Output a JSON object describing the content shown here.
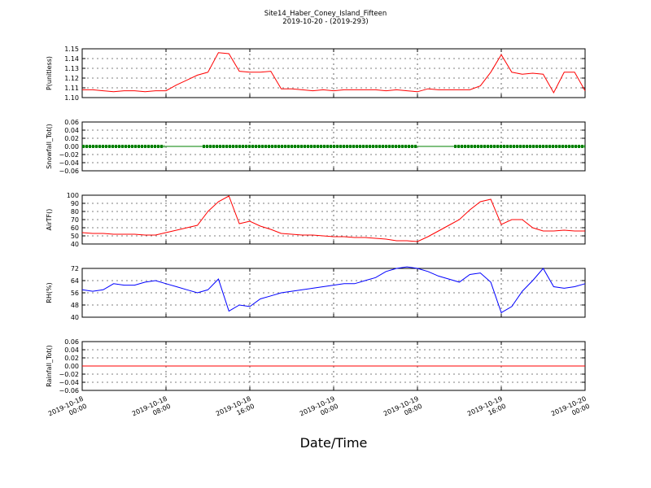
{
  "figure": {
    "title_line1": "Site14_Haber_Coney_Island_Fifteen",
    "title_line2": "2019-10-20 - (2019-293)",
    "xlabel": "Date/Time"
  },
  "chart_data": {
    "type": "line",
    "x_range": [
      "2019-10-18 00:00",
      "2019-10-20 00:00"
    ],
    "x_ticks": [
      {
        "line1": "2019-10-18",
        "line2": "00:00"
      },
      {
        "line1": "2019-10-18",
        "line2": "08:00"
      },
      {
        "line1": "2019-10-18",
        "line2": "16:00"
      },
      {
        "line1": "2019-10-19",
        "line2": "00:00"
      },
      {
        "line1": "2019-10-19",
        "line2": "08:00"
      },
      {
        "line1": "2019-10-19",
        "line2": "16:00"
      },
      {
        "line1": "2019-10-20",
        "line2": "00:00"
      }
    ],
    "grid": true,
    "panels": [
      {
        "ylabel": "P(unitless)",
        "ylim": [
          1.1,
          1.15
        ],
        "yticks": [
          "1.10",
          "1.11",
          "1.12",
          "1.13",
          "1.14",
          "1.15"
        ],
        "color": "#ff0000",
        "style": "line",
        "x_hours": [
          0,
          1,
          2,
          3,
          4,
          5,
          6,
          7,
          8,
          9,
          10,
          11,
          12,
          13,
          14,
          15,
          16,
          17,
          18,
          19,
          20,
          21,
          22,
          23,
          24,
          25,
          26,
          27,
          28,
          29,
          30,
          31,
          32,
          33,
          34,
          35,
          36,
          37,
          38,
          39,
          40,
          41,
          42,
          43,
          44,
          45,
          46,
          47,
          48
        ],
        "values": [
          1.108,
          1.108,
          1.107,
          1.106,
          1.107,
          1.107,
          1.106,
          1.107,
          1.107,
          1.113,
          1.118,
          1.123,
          1.126,
          1.146,
          1.145,
          1.127,
          1.126,
          1.126,
          1.127,
          1.109,
          1.109,
          1.108,
          1.107,
          1.108,
          1.107,
          1.108,
          1.108,
          1.108,
          1.108,
          1.107,
          1.108,
          1.107,
          1.106,
          1.109,
          1.108,
          1.108,
          1.108,
          1.108,
          1.112,
          1.126,
          1.144,
          1.126,
          1.124,
          1.125,
          1.124,
          1.105,
          1.126,
          1.126,
          1.107
        ]
      },
      {
        "ylabel": "Snowfall_Tot()",
        "ylim": [
          -0.06,
          0.06
        ],
        "yticks": [
          "−0.06",
          "−0.04",
          "−0.02",
          "0.00",
          "0.02",
          "0.04",
          "0.06"
        ],
        "color": "#008000",
        "style": "dotted-line",
        "x_hours": [
          0,
          1,
          2,
          3,
          4,
          5,
          6,
          7,
          8,
          9,
          10,
          11,
          12,
          13,
          14,
          15,
          16,
          17,
          18,
          19,
          20,
          21,
          22,
          23,
          24,
          25,
          26,
          27,
          28,
          29,
          30,
          31,
          32,
          33,
          34,
          35,
          36,
          37,
          38,
          39,
          40,
          41,
          42,
          43,
          44,
          45,
          46,
          47,
          48
        ],
        "values": [
          0,
          0,
          0,
          0,
          0,
          0,
          0,
          0,
          0,
          0,
          0,
          0,
          0,
          0,
          0,
          0,
          0,
          0,
          0,
          0,
          0,
          0,
          0,
          0,
          0,
          0,
          0,
          0,
          0,
          0,
          0,
          0,
          0,
          0,
          0,
          0,
          0,
          0,
          0,
          0,
          0,
          0,
          0,
          0,
          0,
          0,
          0,
          0,
          0
        ],
        "dot_ranges": [
          [
            0,
            7.8
          ],
          [
            11.5,
            32
          ],
          [
            35.5,
            48
          ]
        ]
      },
      {
        "ylabel": "AirTF()",
        "ylim": [
          40,
          100
        ],
        "yticks": [
          "40",
          "50",
          "60",
          "70",
          "80",
          "90",
          "100"
        ],
        "color": "#ff0000",
        "style": "line",
        "x_hours": [
          0,
          1,
          2,
          3,
          4,
          5,
          6,
          7,
          8,
          9,
          10,
          11,
          12,
          13,
          14,
          15,
          16,
          17,
          18,
          19,
          20,
          21,
          22,
          23,
          24,
          25,
          26,
          27,
          28,
          29,
          30,
          31,
          32,
          33,
          34,
          35,
          36,
          37,
          38,
          39,
          40,
          41,
          42,
          43,
          44,
          45,
          46,
          47,
          48
        ],
        "values": [
          54,
          53,
          53,
          52,
          52,
          52,
          51,
          51,
          54,
          57,
          60,
          63,
          80,
          92,
          99,
          65,
          68,
          62,
          58,
          53,
          52,
          51,
          51,
          50,
          49,
          49,
          48,
          48,
          47,
          46,
          44,
          44,
          43,
          49,
          56,
          63,
          70,
          82,
          92,
          95,
          64,
          70,
          70,
          60,
          56,
          56,
          57,
          56,
          56
        ]
      },
      {
        "ylabel": "RH(%)",
        "ylim": [
          40,
          72
        ],
        "yticks": [
          "40",
          "48",
          "56",
          "64",
          "72"
        ],
        "color": "#0000ff",
        "style": "line",
        "x_hours": [
          0,
          1,
          2,
          3,
          4,
          5,
          6,
          7,
          8,
          9,
          10,
          11,
          12,
          13,
          14,
          15,
          16,
          17,
          18,
          19,
          20,
          21,
          22,
          23,
          24,
          25,
          26,
          27,
          28,
          29,
          30,
          31,
          32,
          33,
          34,
          35,
          36,
          37,
          38,
          39,
          40,
          41,
          42,
          43,
          44,
          45,
          46,
          47,
          48
        ],
        "values": [
          58,
          57,
          58,
          62,
          61,
          61,
          63,
          64,
          62,
          60,
          58,
          56,
          58,
          65,
          44,
          48,
          47,
          52,
          54,
          56,
          57,
          58,
          59,
          60,
          61,
          62,
          62,
          64,
          66,
          70,
          72,
          73,
          72,
          70,
          67,
          65,
          63,
          68,
          69,
          63,
          43,
          47,
          57,
          64,
          72,
          60,
          59,
          60,
          62
        ]
      },
      {
        "ylabel": "Rainfall_Tot()",
        "ylim": [
          -0.06,
          0.06
        ],
        "yticks": [
          "−0.06",
          "−0.04",
          "−0.02",
          "0.00",
          "0.02",
          "0.04",
          "0.06"
        ],
        "color": "#ff0000",
        "style": "line",
        "x_hours": [
          0,
          48
        ],
        "values": [
          0,
          0
        ]
      }
    ]
  }
}
